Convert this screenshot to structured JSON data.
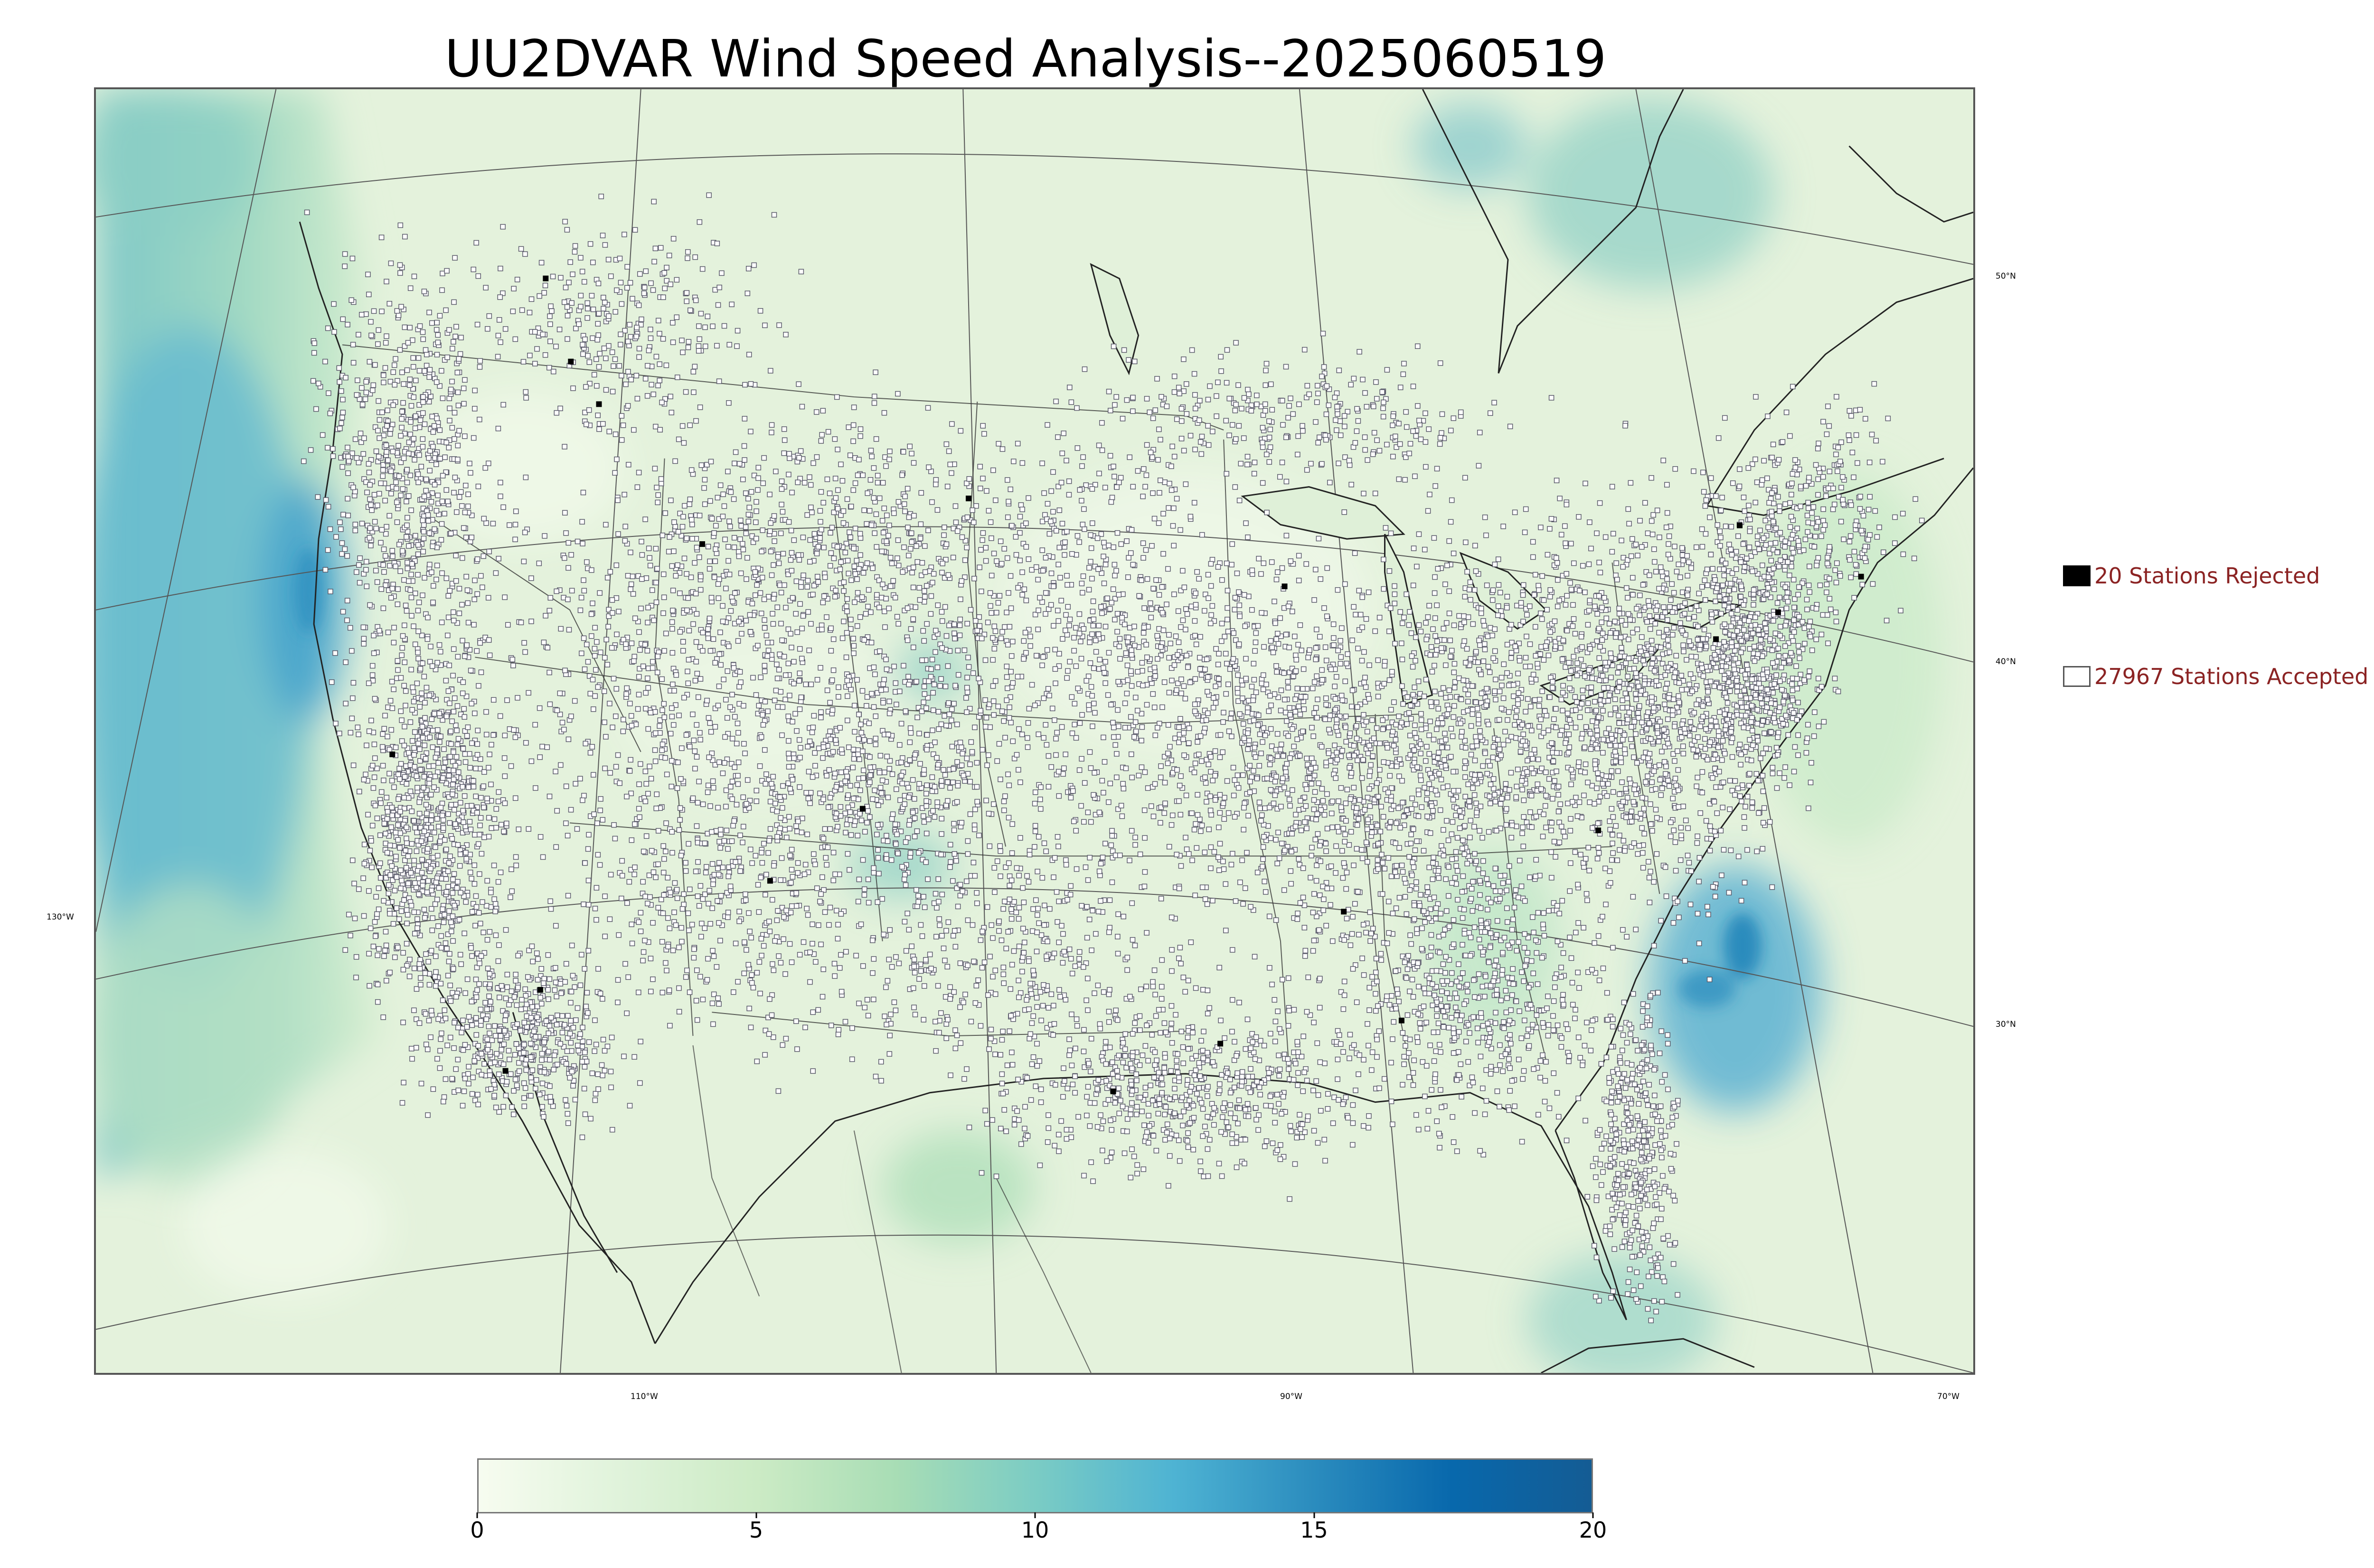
{
  "title": "UU2DVAR Wind Speed Analysis--2025060519",
  "map": {
    "lon_labels": [
      "130°W",
      "110°W",
      "90°W",
      "70°W"
    ],
    "lat_labels": [
      "50°N",
      "40°N",
      "30°N"
    ]
  },
  "legend": {
    "rejected": "20 Stations Rejected",
    "accepted": "27967 Stations Accepted"
  },
  "colorbar": {
    "min": 0,
    "max": 20,
    "ticks": [
      "0",
      "5",
      "10",
      "15",
      "20"
    ],
    "colors": [
      "#f7fcf0",
      "#e0f3db",
      "#ccebc5",
      "#a8ddb5",
      "#7bccc4",
      "#4eb3d3",
      "#2b8cbe",
      "#0868ac",
      "#145c94"
    ]
  },
  "colors": {
    "land_base": "#e4f2dc",
    "ocean_wind": "#4aaccc",
    "strong_wind": "#1d7fb8",
    "station_accepted": "#ffffff",
    "station_rejected": "#000000",
    "legend_text": "#8b2323"
  }
}
